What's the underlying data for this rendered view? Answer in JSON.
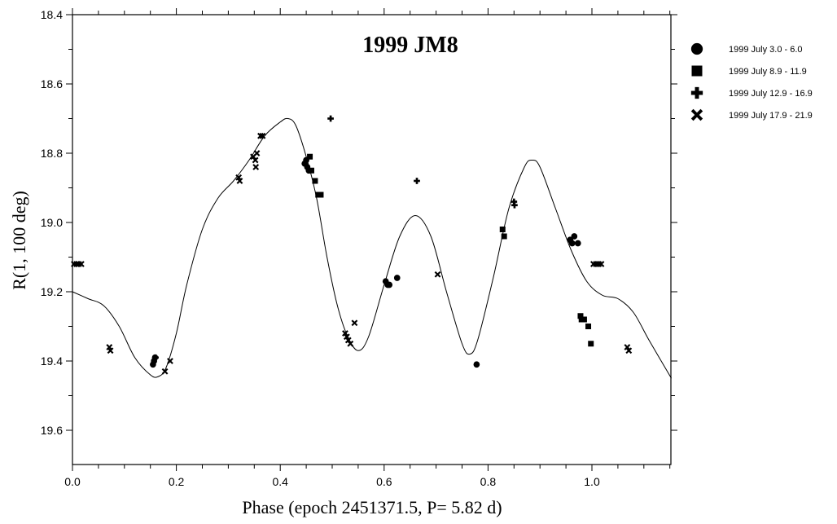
{
  "chart_data": {
    "type": "scatter",
    "title": "1999 JM8",
    "xlabel": "Phase (epoch 2451371.5, P= 5.82 d)",
    "ylabel": "R(1, 100 deg)",
    "xlim": [
      0.0,
      1.153
    ],
    "ylim": [
      19.7,
      18.4
    ],
    "y_inverted": true,
    "x_ticks": [
      "0.0",
      "0.2",
      "0.4",
      "0.6",
      "0.8",
      "1.0"
    ],
    "y_ticks": [
      "18.4",
      "18.6",
      "18.8",
      "19.0",
      "19.2",
      "19.4",
      "19.6"
    ],
    "grid": false,
    "legend_position": "right",
    "series": [
      {
        "name": "1999 July  3.0 -  6.0",
        "marker": "circle",
        "points": [
          [
            0.155,
            19.41
          ],
          [
            0.157,
            19.4
          ],
          [
            0.159,
            19.39
          ],
          [
            0.447,
            18.83
          ],
          [
            0.45,
            18.82
          ],
          [
            0.452,
            18.84
          ],
          [
            0.455,
            18.85
          ],
          [
            0.603,
            19.17
          ],
          [
            0.607,
            19.18
          ],
          [
            0.61,
            19.18
          ],
          [
            0.625,
            19.16
          ],
          [
            0.778,
            19.41
          ],
          [
            0.958,
            19.05
          ],
          [
            0.962,
            19.06
          ],
          [
            0.966,
            19.04
          ],
          [
            0.973,
            19.06
          ]
        ]
      },
      {
        "name": "1999 July  8.9 - 11.9",
        "marker": "square",
        "points": [
          [
            0.457,
            18.81
          ],
          [
            0.46,
            18.85
          ],
          [
            0.467,
            18.88
          ],
          [
            0.473,
            18.92
          ],
          [
            0.478,
            18.92
          ],
          [
            0.828,
            19.02
          ],
          [
            0.831,
            19.04
          ],
          [
            0.978,
            19.27
          ],
          [
            0.98,
            19.28
          ],
          [
            0.985,
            19.28
          ],
          [
            0.993,
            19.3
          ],
          [
            0.998,
            19.35
          ]
        ]
      },
      {
        "name": "1999 July 12.9 - 16.9",
        "marker": "plus",
        "points": [
          [
            0.16,
            19.39
          ],
          [
            0.497,
            18.7
          ],
          [
            0.663,
            18.88
          ],
          [
            0.85,
            18.94
          ],
          [
            0.851,
            18.95
          ]
        ]
      },
      {
        "name": "1999 July 17.9 - 21.9",
        "marker": "x",
        "points": [
          [
            0.003,
            19.12
          ],
          [
            0.008,
            19.12
          ],
          [
            0.012,
            19.12
          ],
          [
            0.017,
            19.12
          ],
          [
            0.071,
            19.36
          ],
          [
            0.073,
            19.37
          ],
          [
            0.178,
            19.43
          ],
          [
            0.188,
            19.4
          ],
          [
            0.32,
            18.87
          ],
          [
            0.322,
            18.88
          ],
          [
            0.348,
            18.81
          ],
          [
            0.352,
            18.82
          ],
          [
            0.353,
            18.84
          ],
          [
            0.355,
            18.8
          ],
          [
            0.362,
            18.75
          ],
          [
            0.366,
            18.75
          ],
          [
            0.525,
            19.32
          ],
          [
            0.528,
            19.33
          ],
          [
            0.531,
            19.34
          ],
          [
            0.535,
            19.35
          ],
          [
            0.543,
            19.29
          ],
          [
            0.703,
            19.15
          ],
          [
            1.003,
            19.12
          ],
          [
            1.008,
            19.12
          ],
          [
            1.013,
            19.12
          ],
          [
            1.018,
            19.12
          ],
          [
            1.068,
            19.36
          ],
          [
            1.071,
            19.37
          ]
        ]
      }
    ],
    "fit_curve": {
      "name": "Fourier fit",
      "points": [
        [
          0.0,
          19.2
        ],
        [
          0.03,
          19.22
        ],
        [
          0.06,
          19.24
        ],
        [
          0.09,
          19.3
        ],
        [
          0.12,
          19.39
        ],
        [
          0.15,
          19.44
        ],
        [
          0.165,
          19.445
        ],
        [
          0.18,
          19.42
        ],
        [
          0.2,
          19.32
        ],
        [
          0.22,
          19.18
        ],
        [
          0.25,
          19.02
        ],
        [
          0.28,
          18.93
        ],
        [
          0.31,
          18.88
        ],
        [
          0.34,
          18.82
        ],
        [
          0.37,
          18.75
        ],
        [
          0.4,
          18.71
        ],
        [
          0.415,
          18.7
        ],
        [
          0.43,
          18.72
        ],
        [
          0.45,
          18.81
        ],
        [
          0.47,
          18.93
        ],
        [
          0.49,
          19.1
        ],
        [
          0.51,
          19.24
        ],
        [
          0.53,
          19.33
        ],
        [
          0.55,
          19.37
        ],
        [
          0.57,
          19.33
        ],
        [
          0.6,
          19.18
        ],
        [
          0.63,
          19.04
        ],
        [
          0.66,
          18.98
        ],
        [
          0.69,
          19.04
        ],
        [
          0.72,
          19.2
        ],
        [
          0.75,
          19.35
        ],
        [
          0.765,
          19.38
        ],
        [
          0.78,
          19.34
        ],
        [
          0.81,
          19.16
        ],
        [
          0.84,
          18.96
        ],
        [
          0.87,
          18.84
        ],
        [
          0.885,
          18.82
        ],
        [
          0.9,
          18.84
        ],
        [
          0.93,
          18.96
        ],
        [
          0.96,
          19.08
        ],
        [
          0.99,
          19.17
        ],
        [
          1.02,
          19.21
        ],
        [
          1.05,
          19.22
        ],
        [
          1.08,
          19.26
        ],
        [
          1.11,
          19.34
        ],
        [
          1.153,
          19.45
        ]
      ]
    }
  },
  "legend": {
    "items": [
      {
        "label": "1999 July  3.0 -  6.0",
        "marker": "circle"
      },
      {
        "label": "1999 July  8.9 - 11.9",
        "marker": "square"
      },
      {
        "label": "1999 July 12.9 - 16.9",
        "marker": "plus"
      },
      {
        "label": "1999 July 17.9 - 21.9",
        "marker": "x"
      }
    ]
  }
}
